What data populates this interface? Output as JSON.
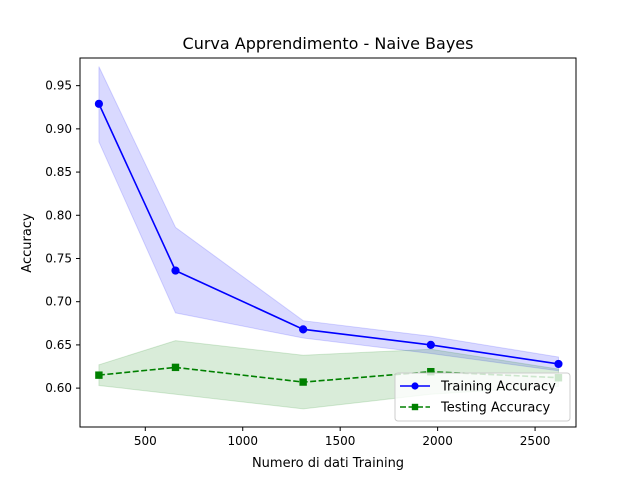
{
  "chart_data": {
    "type": "line",
    "title": "Curva Apprendimento - Naive Bayes",
    "xlabel": "Numero di dati Training",
    "ylabel": "Accuracy",
    "xlim": [
      165,
      2710
    ],
    "ylim": [
      0.555,
      0.982
    ],
    "xticks": [
      500,
      1000,
      1500,
      2000,
      2500
    ],
    "xtick_labels": [
      "500",
      "1000",
      "1500",
      "2000",
      "2500"
    ],
    "yticks": [
      0.6,
      0.65,
      0.7,
      0.75,
      0.8,
      0.85,
      0.9,
      0.95
    ],
    "ytick_labels": [
      "0.60",
      "0.65",
      "0.70",
      "0.75",
      "0.80",
      "0.85",
      "0.90",
      "0.95"
    ],
    "grid": false,
    "legend_position": "lower-right",
    "x": [
      262,
      655,
      1310,
      1965,
      2620
    ],
    "series": [
      {
        "name": "Training Accuracy",
        "color": "#0000ff",
        "marker": "circle",
        "linestyle": "solid",
        "values": [
          0.929,
          0.736,
          0.668,
          0.65,
          0.628
        ],
        "band_upper": [
          0.972,
          0.786,
          0.678,
          0.66,
          0.636
        ],
        "band_lower": [
          0.885,
          0.687,
          0.658,
          0.64,
          0.62
        ],
        "band_color": "#0000ff"
      },
      {
        "name": "Testing Accuracy",
        "color": "#008000",
        "marker": "square",
        "linestyle": "dashed",
        "values": [
          0.615,
          0.624,
          0.607,
          0.619,
          0.612
        ],
        "band_upper": [
          0.627,
          0.655,
          0.638,
          0.645,
          0.622
        ],
        "band_lower": [
          0.603,
          0.593,
          0.576,
          0.593,
          0.602
        ],
        "band_color": "#008000"
      }
    ]
  }
}
